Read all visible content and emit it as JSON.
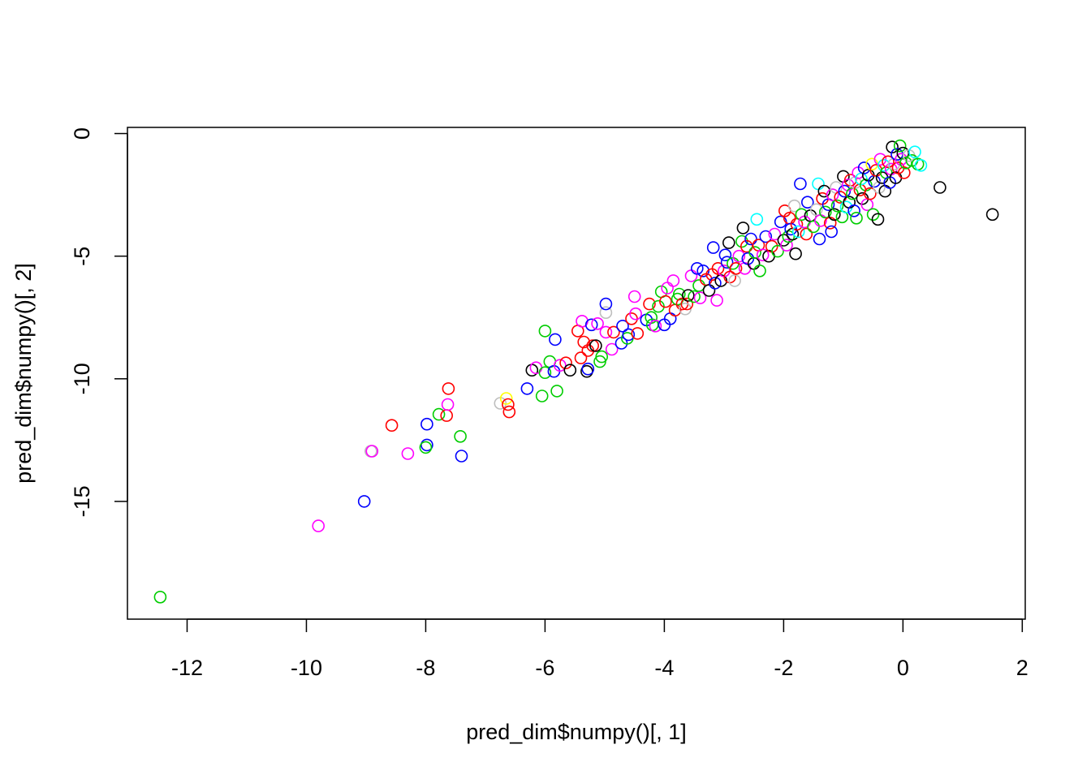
{
  "chart_data": {
    "type": "scatter",
    "title": "",
    "xlabel": "pred_dim$numpy()[, 1]",
    "ylabel": "pred_dim$numpy()[, 2]",
    "xlim": [
      -13,
      2.05
    ],
    "ylim": [
      -19.8,
      0.25
    ],
    "xticks": [
      -12,
      -10,
      -8,
      -6,
      -4,
      -2,
      0,
      2
    ],
    "xtick_labels": [
      "-12",
      "-10",
      "-8",
      "-6",
      "-4",
      "-2",
      "0",
      "2"
    ],
    "yticks": [
      0,
      -5,
      -10,
      -15
    ],
    "ytick_labels": [
      "0",
      "-5",
      "-10",
      "-15"
    ],
    "grid": false,
    "legend": "none",
    "marker": "open-circle",
    "palette": {
      "black": "#000000",
      "red": "#FF0000",
      "green": "#00CD00",
      "blue": "#0000FF",
      "cyan": "#00FFFF",
      "magenta": "#FF00FF",
      "yellow": "#FFFF00",
      "gray": "#BEBEBE"
    },
    "points": [
      {
        "x": -12.45,
        "y": -18.9,
        "c": "green"
      },
      {
        "x": -9.8,
        "y": -16.0,
        "c": "magenta"
      },
      {
        "x": -9.03,
        "y": -15.0,
        "c": "blue"
      },
      {
        "x": -8.92,
        "y": -12.95,
        "c": "gray"
      },
      {
        "x": -8.9,
        "y": -12.95,
        "c": "magenta"
      },
      {
        "x": -8.57,
        "y": -11.9,
        "c": "red"
      },
      {
        "x": -8.3,
        "y": -13.05,
        "c": "magenta"
      },
      {
        "x": -7.98,
        "y": -11.85,
        "c": "blue"
      },
      {
        "x": -7.98,
        "y": -12.7,
        "c": "blue"
      },
      {
        "x": -8.0,
        "y": -12.8,
        "c": "green"
      },
      {
        "x": -7.78,
        "y": -11.45,
        "c": "green"
      },
      {
        "x": -7.65,
        "y": -11.5,
        "c": "red"
      },
      {
        "x": -7.63,
        "y": -11.05,
        "c": "magenta"
      },
      {
        "x": -7.62,
        "y": -10.4,
        "c": "red"
      },
      {
        "x": -7.42,
        "y": -12.35,
        "c": "green"
      },
      {
        "x": -7.4,
        "y": -13.15,
        "c": "blue"
      },
      {
        "x": -6.75,
        "y": -11.0,
        "c": "gray"
      },
      {
        "x": -6.65,
        "y": -10.8,
        "c": "yellow"
      },
      {
        "x": -6.62,
        "y": -11.05,
        "c": "red"
      },
      {
        "x": -6.6,
        "y": -11.35,
        "c": "red"
      },
      {
        "x": -6.3,
        "y": -10.4,
        "c": "blue"
      },
      {
        "x": -6.22,
        "y": -9.65,
        "c": "black"
      },
      {
        "x": -6.15,
        "y": -9.55,
        "c": "magenta"
      },
      {
        "x": -6.05,
        "y": -10.7,
        "c": "green"
      },
      {
        "x": -6.0,
        "y": -8.05,
        "c": "green"
      },
      {
        "x": -6.0,
        "y": -9.75,
        "c": "green"
      },
      {
        "x": -5.92,
        "y": -9.3,
        "c": "green"
      },
      {
        "x": -5.85,
        "y": -9.7,
        "c": "blue"
      },
      {
        "x": -5.83,
        "y": -8.4,
        "c": "blue"
      },
      {
        "x": -5.8,
        "y": -10.5,
        "c": "green"
      },
      {
        "x": -5.75,
        "y": -9.45,
        "c": "magenta"
      },
      {
        "x": -5.65,
        "y": -9.35,
        "c": "red"
      },
      {
        "x": -5.58,
        "y": -9.65,
        "c": "black"
      },
      {
        "x": -5.45,
        "y": -8.05,
        "c": "red"
      },
      {
        "x": -5.4,
        "y": -9.15,
        "c": "red"
      },
      {
        "x": -5.38,
        "y": -7.65,
        "c": "magenta"
      },
      {
        "x": -5.35,
        "y": -8.5,
        "c": "red"
      },
      {
        "x": -5.3,
        "y": -9.7,
        "c": "black"
      },
      {
        "x": -5.28,
        "y": -9.6,
        "c": "blue"
      },
      {
        "x": -5.28,
        "y": -8.85,
        "c": "red"
      },
      {
        "x": -5.22,
        "y": -7.8,
        "c": "blue"
      },
      {
        "x": -5.2,
        "y": -8.65,
        "c": "red"
      },
      {
        "x": -5.15,
        "y": -8.65,
        "c": "black"
      },
      {
        "x": -5.12,
        "y": -7.75,
        "c": "magenta"
      },
      {
        "x": -5.08,
        "y": -9.3,
        "c": "green"
      },
      {
        "x": -5.05,
        "y": -9.1,
        "c": "green"
      },
      {
        "x": -4.98,
        "y": -8.1,
        "c": "magenta"
      },
      {
        "x": -4.98,
        "y": -7.3,
        "c": "gray"
      },
      {
        "x": -4.98,
        "y": -6.95,
        "c": "blue"
      },
      {
        "x": -4.88,
        "y": -8.8,
        "c": "magenta"
      },
      {
        "x": -4.85,
        "y": -8.1,
        "c": "red"
      },
      {
        "x": -4.72,
        "y": -8.55,
        "c": "blue"
      },
      {
        "x": -4.7,
        "y": -7.85,
        "c": "blue"
      },
      {
        "x": -4.62,
        "y": -8.35,
        "c": "green"
      },
      {
        "x": -4.6,
        "y": -8.2,
        "c": "blue"
      },
      {
        "x": -4.55,
        "y": -7.55,
        "c": "red"
      },
      {
        "x": -4.5,
        "y": -6.65,
        "c": "magenta"
      },
      {
        "x": -4.48,
        "y": -7.35,
        "c": "magenta"
      },
      {
        "x": -4.45,
        "y": -8.15,
        "c": "red"
      },
      {
        "x": -4.3,
        "y": -7.6,
        "c": "blue"
      },
      {
        "x": -4.25,
        "y": -6.95,
        "c": "red"
      },
      {
        "x": -4.22,
        "y": -7.5,
        "c": "green"
      },
      {
        "x": -4.2,
        "y": -7.8,
        "c": "green"
      },
      {
        "x": -4.15,
        "y": -7.85,
        "c": "magenta"
      },
      {
        "x": -4.1,
        "y": -7.05,
        "c": "green"
      },
      {
        "x": -4.05,
        "y": -6.45,
        "c": "green"
      },
      {
        "x": -4.0,
        "y": -7.8,
        "c": "blue"
      },
      {
        "x": -3.98,
        "y": -6.85,
        "c": "red"
      },
      {
        "x": -3.95,
        "y": -6.3,
        "c": "magenta"
      },
      {
        "x": -3.9,
        "y": -7.55,
        "c": "blue"
      },
      {
        "x": -3.85,
        "y": -6.0,
        "c": "magenta"
      },
      {
        "x": -3.82,
        "y": -7.2,
        "c": "red"
      },
      {
        "x": -3.78,
        "y": -6.75,
        "c": "green"
      },
      {
        "x": -3.75,
        "y": -6.55,
        "c": "green"
      },
      {
        "x": -3.7,
        "y": -6.95,
        "c": "red"
      },
      {
        "x": -3.65,
        "y": -7.15,
        "c": "gray"
      },
      {
        "x": -3.62,
        "y": -6.95,
        "c": "red"
      },
      {
        "x": -3.6,
        "y": -6.6,
        "c": "black"
      },
      {
        "x": -3.55,
        "y": -5.8,
        "c": "magenta"
      },
      {
        "x": -3.5,
        "y": -6.65,
        "c": "green"
      },
      {
        "x": -3.45,
        "y": -5.5,
        "c": "blue"
      },
      {
        "x": -3.42,
        "y": -6.2,
        "c": "green"
      },
      {
        "x": -3.4,
        "y": -6.7,
        "c": "magenta"
      },
      {
        "x": -3.35,
        "y": -5.6,
        "c": "blue"
      },
      {
        "x": -3.3,
        "y": -5.95,
        "c": "red"
      },
      {
        "x": -3.25,
        "y": -6.4,
        "c": "black"
      },
      {
        "x": -3.2,
        "y": -5.75,
        "c": "red"
      },
      {
        "x": -3.18,
        "y": -4.65,
        "c": "blue"
      },
      {
        "x": -3.15,
        "y": -6.1,
        "c": "blue"
      },
      {
        "x": -3.12,
        "y": -6.8,
        "c": "magenta"
      },
      {
        "x": -3.1,
        "y": -5.5,
        "c": "red"
      },
      {
        "x": -3.05,
        "y": -6.0,
        "c": "black"
      },
      {
        "x": -3.0,
        "y": -5.6,
        "c": "magenta"
      },
      {
        "x": -2.98,
        "y": -4.95,
        "c": "blue"
      },
      {
        "x": -2.95,
        "y": -5.25,
        "c": "blue"
      },
      {
        "x": -2.92,
        "y": -4.45,
        "c": "black"
      },
      {
        "x": -2.9,
        "y": -5.85,
        "c": "red"
      },
      {
        "x": -2.85,
        "y": -5.3,
        "c": "green"
      },
      {
        "x": -2.82,
        "y": -6.0,
        "c": "gray"
      },
      {
        "x": -2.8,
        "y": -5.5,
        "c": "red"
      },
      {
        "x": -2.75,
        "y": -5.0,
        "c": "magenta"
      },
      {
        "x": -2.7,
        "y": -4.4,
        "c": "green"
      },
      {
        "x": -2.68,
        "y": -3.85,
        "c": "black"
      },
      {
        "x": -2.65,
        "y": -5.5,
        "c": "magenta"
      },
      {
        "x": -2.62,
        "y": -4.6,
        "c": "red"
      },
      {
        "x": -2.6,
        "y": -5.1,
        "c": "blue"
      },
      {
        "x": -2.55,
        "y": -4.3,
        "c": "blue"
      },
      {
        "x": -2.5,
        "y": -5.3,
        "c": "black"
      },
      {
        "x": -2.48,
        "y": -4.85,
        "c": "green"
      },
      {
        "x": -2.45,
        "y": -3.5,
        "c": "cyan"
      },
      {
        "x": -2.42,
        "y": -4.55,
        "c": "red"
      },
      {
        "x": -2.4,
        "y": -5.6,
        "c": "green"
      },
      {
        "x": -2.35,
        "y": -4.95,
        "c": "magenta"
      },
      {
        "x": -2.3,
        "y": -4.2,
        "c": "blue"
      },
      {
        "x": -2.25,
        "y": -5.0,
        "c": "black"
      },
      {
        "x": -2.2,
        "y": -4.6,
        "c": "red"
      },
      {
        "x": -2.15,
        "y": -4.1,
        "c": "magenta"
      },
      {
        "x": -2.1,
        "y": -4.8,
        "c": "green"
      },
      {
        "x": -2.05,
        "y": -3.6,
        "c": "blue"
      },
      {
        "x": -2.0,
        "y": -4.35,
        "c": "black"
      },
      {
        "x": -1.98,
        "y": -3.15,
        "c": "red"
      },
      {
        "x": -1.95,
        "y": -4.55,
        "c": "magenta"
      },
      {
        "x": -1.92,
        "y": -4.2,
        "c": "green"
      },
      {
        "x": -1.9,
        "y": -3.45,
        "c": "red"
      },
      {
        "x": -1.88,
        "y": -3.9,
        "c": "blue"
      },
      {
        "x": -1.85,
        "y": -4.1,
        "c": "black"
      },
      {
        "x": -1.82,
        "y": -2.95,
        "c": "gray"
      },
      {
        "x": -1.8,
        "y": -4.9,
        "c": "black"
      },
      {
        "x": -1.78,
        "y": -3.7,
        "c": "red"
      },
      {
        "x": -1.75,
        "y": -4.0,
        "c": "cyan"
      },
      {
        "x": -1.72,
        "y": -2.05,
        "c": "blue"
      },
      {
        "x": -1.7,
        "y": -3.3,
        "c": "green"
      },
      {
        "x": -1.65,
        "y": -3.6,
        "c": "magenta"
      },
      {
        "x": -1.62,
        "y": -4.1,
        "c": "red"
      },
      {
        "x": -1.6,
        "y": -2.8,
        "c": "blue"
      },
      {
        "x": -1.55,
        "y": -3.35,
        "c": "black"
      },
      {
        "x": -1.5,
        "y": -3.8,
        "c": "green"
      },
      {
        "x": -1.45,
        "y": -3.1,
        "c": "gray"
      },
      {
        "x": -1.42,
        "y": -2.05,
        "c": "cyan"
      },
      {
        "x": -1.4,
        "y": -4.3,
        "c": "blue"
      },
      {
        "x": -1.38,
        "y": -3.55,
        "c": "magenta"
      },
      {
        "x": -1.35,
        "y": -2.65,
        "c": "red"
      },
      {
        "x": -1.32,
        "y": -2.35,
        "c": "black"
      },
      {
        "x": -1.3,
        "y": -3.2,
        "c": "green"
      },
      {
        "x": -1.25,
        "y": -2.9,
        "c": "blue"
      },
      {
        "x": -1.22,
        "y": -3.65,
        "c": "red"
      },
      {
        "x": -1.2,
        "y": -4.0,
        "c": "blue"
      },
      {
        "x": -1.18,
        "y": -2.5,
        "c": "magenta"
      },
      {
        "x": -1.15,
        "y": -3.3,
        "c": "black"
      },
      {
        "x": -1.12,
        "y": -2.2,
        "c": "gray"
      },
      {
        "x": -1.1,
        "y": -2.95,
        "c": "green"
      },
      {
        "x": -1.05,
        "y": -2.6,
        "c": "red"
      },
      {
        "x": -1.02,
        "y": -3.4,
        "c": "green"
      },
      {
        "x": -1.0,
        "y": -1.75,
        "c": "black"
      },
      {
        "x": -0.98,
        "y": -2.35,
        "c": "blue"
      },
      {
        "x": -0.95,
        "y": -3.0,
        "c": "cyan"
      },
      {
        "x": -0.92,
        "y": -2.1,
        "c": "magenta"
      },
      {
        "x": -0.9,
        "y": -2.8,
        "c": "black"
      },
      {
        "x": -0.88,
        "y": -1.9,
        "c": "red"
      },
      {
        "x": -0.85,
        "y": -2.45,
        "c": "green"
      },
      {
        "x": -0.82,
        "y": -3.15,
        "c": "blue"
      },
      {
        "x": -0.8,
        "y": -2.0,
        "c": "gray"
      },
      {
        "x": -0.78,
        "y": -3.45,
        "c": "green"
      },
      {
        "x": -0.75,
        "y": -1.6,
        "c": "magenta"
      },
      {
        "x": -0.72,
        "y": -2.3,
        "c": "red"
      },
      {
        "x": -0.7,
        "y": -1.85,
        "c": "cyan"
      },
      {
        "x": -0.68,
        "y": -2.65,
        "c": "black"
      },
      {
        "x": -0.65,
        "y": -1.4,
        "c": "blue"
      },
      {
        "x": -0.62,
        "y": -2.1,
        "c": "green"
      },
      {
        "x": -0.6,
        "y": -2.9,
        "c": "magenta"
      },
      {
        "x": -0.58,
        "y": -1.7,
        "c": "black"
      },
      {
        "x": -0.55,
        "y": -2.45,
        "c": "red"
      },
      {
        "x": -0.52,
        "y": -1.25,
        "c": "yellow"
      },
      {
        "x": -0.5,
        "y": -3.3,
        "c": "green"
      },
      {
        "x": -0.48,
        "y": -1.95,
        "c": "blue"
      },
      {
        "x": -0.45,
        "y": -1.5,
        "c": "red"
      },
      {
        "x": -0.42,
        "y": -3.5,
        "c": "black"
      },
      {
        "x": -0.4,
        "y": -2.2,
        "c": "gray"
      },
      {
        "x": -0.38,
        "y": -1.05,
        "c": "magenta"
      },
      {
        "x": -0.35,
        "y": -1.8,
        "c": "black"
      },
      {
        "x": -0.32,
        "y": -1.3,
        "c": "cyan"
      },
      {
        "x": -0.3,
        "y": -2.35,
        "c": "black"
      },
      {
        "x": -0.28,
        "y": -1.6,
        "c": "green"
      },
      {
        "x": -0.25,
        "y": -1.15,
        "c": "red"
      },
      {
        "x": -0.22,
        "y": -2.0,
        "c": "blue"
      },
      {
        "x": -0.2,
        "y": -1.45,
        "c": "magenta"
      },
      {
        "x": -0.18,
        "y": -0.55,
        "c": "black"
      },
      {
        "x": -0.15,
        "y": -1.25,
        "c": "gray"
      },
      {
        "x": -0.12,
        "y": -1.8,
        "c": "black"
      },
      {
        "x": -0.1,
        "y": -0.85,
        "c": "blue"
      },
      {
        "x": -0.08,
        "y": -1.4,
        "c": "red"
      },
      {
        "x": -0.05,
        "y": -0.5,
        "c": "green"
      },
      {
        "x": -0.03,
        "y": -1.05,
        "c": "magenta"
      },
      {
        "x": 0.0,
        "y": -0.8,
        "c": "black"
      },
      {
        "x": 0.02,
        "y": -1.6,
        "c": "red"
      },
      {
        "x": 0.05,
        "y": -1.2,
        "c": "green"
      },
      {
        "x": 0.1,
        "y": -0.9,
        "c": "gray"
      },
      {
        "x": 0.15,
        "y": -1.1,
        "c": "green"
      },
      {
        "x": 0.2,
        "y": -0.75,
        "c": "cyan"
      },
      {
        "x": 0.25,
        "y": -1.25,
        "c": "green"
      },
      {
        "x": 0.3,
        "y": -1.3,
        "c": "cyan"
      },
      {
        "x": 0.62,
        "y": -2.2,
        "c": "black"
      },
      {
        "x": 1.5,
        "y": -3.3,
        "c": "black"
      }
    ]
  }
}
